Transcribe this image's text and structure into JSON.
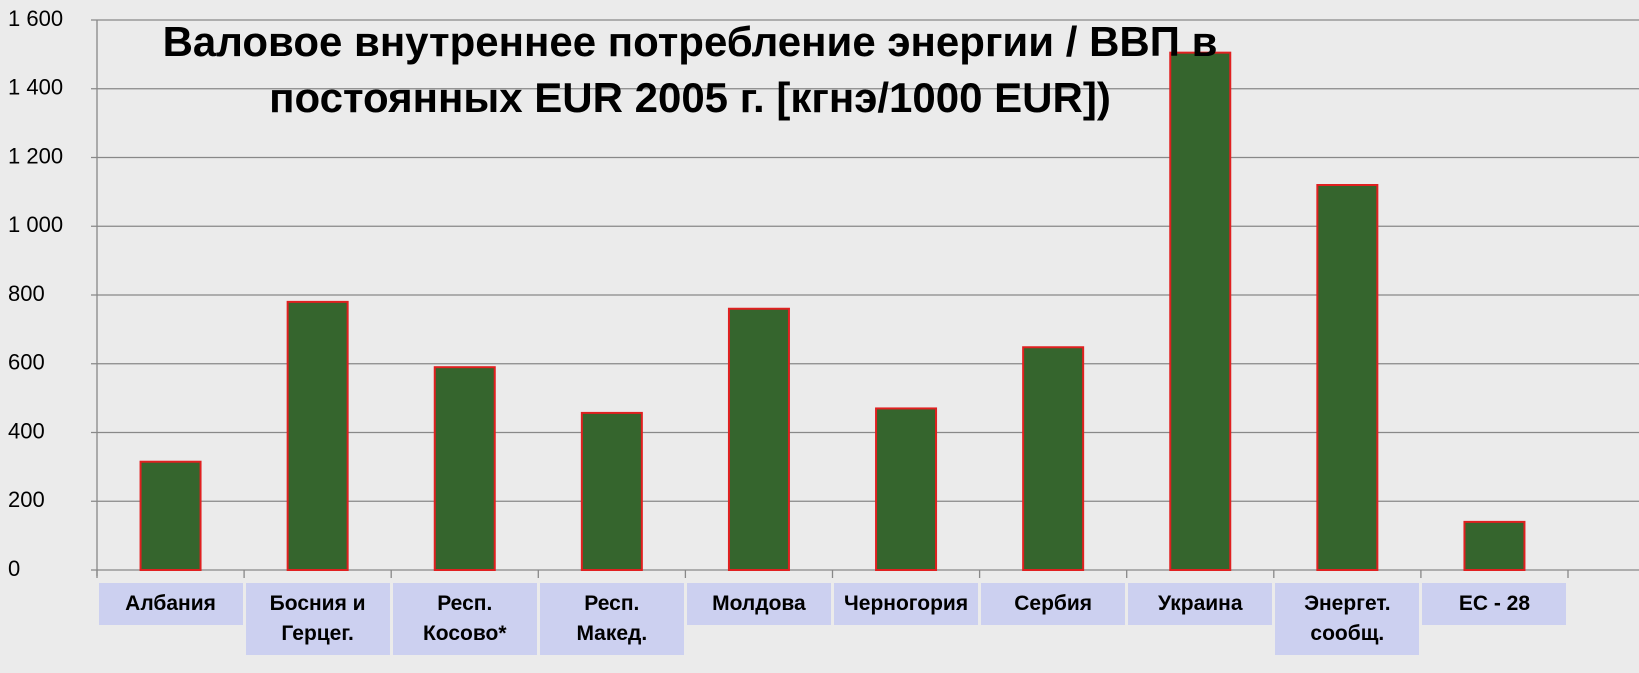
{
  "chart_data": {
    "type": "bar",
    "title": "Валовое внутреннее потребление энергии / ВВП в\nпостоянных EUR 2005 г. [кгнэ/1000 EUR])",
    "categories": [
      "Албания",
      "Босния и\nГерцег.",
      "Респ.\nКосово*",
      "Респ.\nМакед.",
      "Молдова",
      "Черногория",
      "Сербия",
      "Украина",
      "Энергет.\nсообщ.",
      "ЕС - 28"
    ],
    "values": [
      315,
      780,
      590,
      457,
      760,
      470,
      648,
      1505,
      1120,
      140
    ],
    "color": "#35652d",
    "edge_color": "#e02020",
    "ylim": [
      0,
      1600
    ],
    "yticks": [
      0,
      200,
      400,
      600,
      800,
      {
        "value": 1000,
        "label": "1 000"
      },
      {
        "value": 1200,
        "label": "1 200"
      },
      {
        "value": 1400,
        "label": "1 400"
      },
      {
        "value": 1600,
        "label": "1 600"
      }
    ],
    "grid": true
  }
}
